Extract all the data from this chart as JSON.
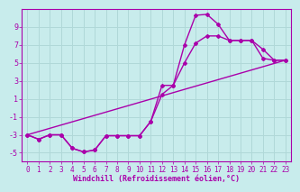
{
  "background_color": "#c8ecec",
  "grid_color": "#b0d8d8",
  "line_color": "#aa00aa",
  "xlim": [
    -0.5,
    23.5
  ],
  "ylim": [
    -6,
    11
  ],
  "yticks": [
    -5,
    -3,
    -1,
    1,
    3,
    5,
    7,
    9
  ],
  "xticks": [
    0,
    1,
    2,
    3,
    4,
    5,
    6,
    7,
    8,
    9,
    10,
    11,
    12,
    13,
    14,
    15,
    16,
    17,
    18,
    19,
    20,
    21,
    22,
    23
  ],
  "xlabel": "Windchill (Refroidissement éolien,°C)",
  "line1_x": [
    0,
    1,
    2,
    3,
    4,
    5,
    6,
    7,
    8,
    9,
    10,
    11,
    12,
    13,
    14,
    15,
    16,
    17,
    18,
    19,
    20,
    21,
    22,
    23
  ],
  "line1_y": [
    -3.0,
    -3.5,
    -3.0,
    -3.0,
    -4.5,
    -4.9,
    -4.7,
    -3.1,
    -3.1,
    -3.1,
    -3.1,
    -1.5,
    2.5,
    2.5,
    7.0,
    10.3,
    10.4,
    9.3,
    7.5,
    7.5,
    7.5,
    5.5,
    5.3,
    5.3
  ],
  "line2_x": [
    0,
    1,
    2,
    3,
    4,
    5,
    6,
    7,
    8,
    9,
    10,
    11,
    12,
    13,
    14,
    15,
    16,
    17,
    18,
    19,
    20,
    21,
    22,
    23
  ],
  "line2_y": [
    -3.0,
    -3.5,
    -3.0,
    -3.0,
    -4.5,
    -4.9,
    -4.7,
    -3.1,
    -3.1,
    -3.1,
    -3.1,
    -1.5,
    1.5,
    2.5,
    5.0,
    7.2,
    8.0,
    8.0,
    7.5,
    7.5,
    7.5,
    6.5,
    5.3,
    5.3
  ],
  "line3_x": [
    0,
    23
  ],
  "line3_y": [
    -3.0,
    5.3
  ]
}
